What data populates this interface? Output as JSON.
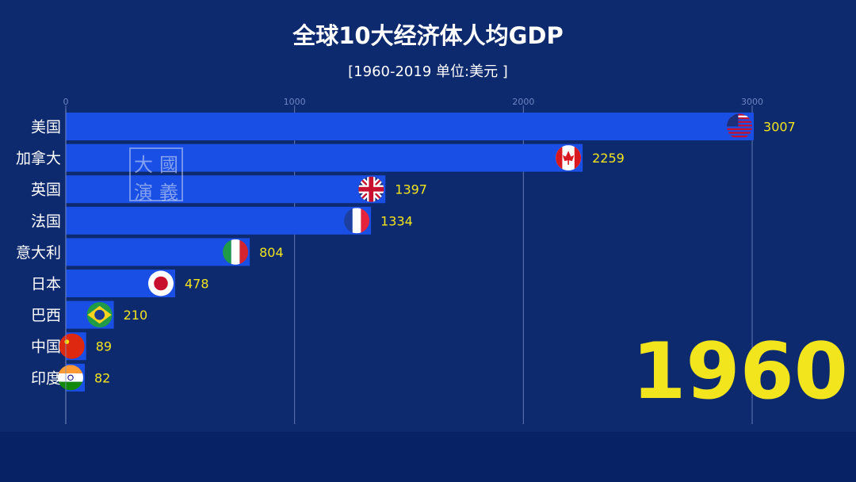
{
  "chart_data": {
    "type": "bar",
    "orientation": "horizontal",
    "title": "全球10大经济体人均GDP",
    "subtitle": "[1960-2019 单位:美元 ]",
    "year": "1960",
    "categories": [
      "美国",
      "加拿大",
      "英国",
      "法国",
      "意大利",
      "日本",
      "巴西",
      "中国",
      "印度"
    ],
    "values": [
      3007,
      2259,
      1397,
      1334,
      804,
      478,
      210,
      89,
      82
    ],
    "value_labels": [
      "3007",
      "2259",
      "1397",
      "1334",
      "804",
      "478",
      "210",
      "89",
      "82"
    ],
    "xticks": [
      0,
      1000,
      2000,
      3000
    ],
    "xtick_labels": [
      "0",
      "1000",
      "2000",
      "3000"
    ],
    "xlim": [
      0,
      3000
    ],
    "grid": true,
    "bar_color": "#1a4fe6",
    "value_label_color": "#f2e51d",
    "flag_icons": [
      "usa-flag-icon",
      "canada-flag-icon",
      "uk-flag-icon",
      "france-flag-icon",
      "italy-flag-icon",
      "japan-flag-icon",
      "brazil-flag-icon",
      "china-flag-icon",
      "india-flag-icon"
    ]
  },
  "watermark": [
    "大",
    "國",
    "演",
    "義"
  ]
}
